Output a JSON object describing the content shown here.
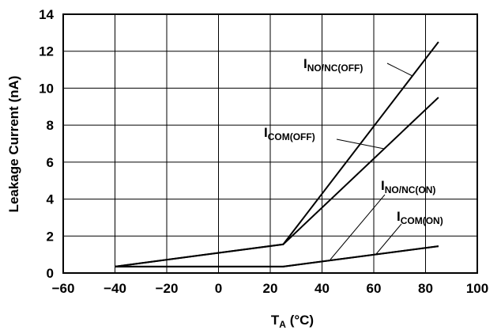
{
  "chart_data": {
    "type": "line",
    "title": "",
    "xlabel": {
      "main": "T",
      "sub": "A",
      "unit": " (°C)"
    },
    "ylabel": "Leakage Current (nA)",
    "xlim": [
      -60,
      100
    ],
    "ylim": [
      0,
      14
    ],
    "xticks": [
      -60,
      -40,
      -20,
      0,
      20,
      40,
      60,
      80,
      100
    ],
    "yticks": [
      0,
      2,
      4,
      6,
      8,
      10,
      12,
      14
    ],
    "xtick_labels": [
      "−60",
      "−40",
      "−20",
      "0",
      "20",
      "40",
      "60",
      "80",
      "100"
    ],
    "ytick_labels": [
      "0",
      "2",
      "4",
      "6",
      "8",
      "10",
      "12",
      "14"
    ],
    "grid": true,
    "legend": "none",
    "series": [
      {
        "id": "no_nc_off",
        "label_main": "I",
        "label_sub": "NO/NC(OFF)",
        "x": [
          -40,
          25,
          85
        ],
        "y": [
          0.35,
          1.55,
          12.5
        ]
      },
      {
        "id": "com_off",
        "label_main": "I",
        "label_sub": "COM(OFF)",
        "x": [
          -40,
          25,
          85
        ],
        "y": [
          0.35,
          1.55,
          9.5
        ]
      },
      {
        "id": "no_nc_on",
        "label_main": "I",
        "label_sub": "NO/NC(ON)",
        "x": [
          -40,
          25,
          85
        ],
        "y": [
          0.35,
          0.35,
          1.45
        ]
      },
      {
        "id": "com_on",
        "label_main": "I",
        "label_sub": "COM(ON)",
        "x": [
          -40,
          25,
          85
        ],
        "y": [
          0.35,
          0.35,
          1.45
        ]
      }
    ]
  }
}
